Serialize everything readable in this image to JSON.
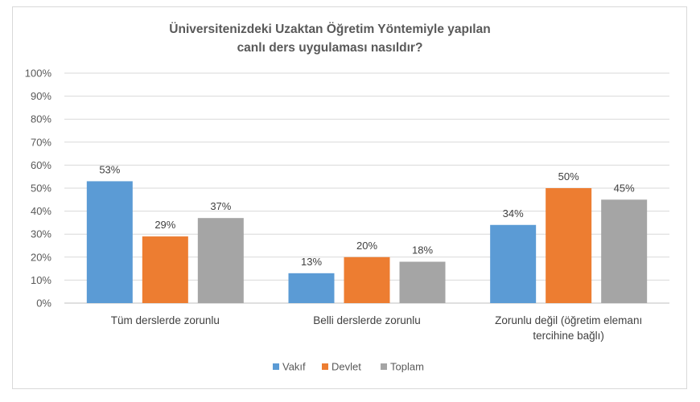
{
  "chart_data": {
    "type": "bar",
    "title_lines": [
      "Üniversitenizdeki Uzaktan Öğretim Yöntemiyle yapılan",
      "canlı ders uygulaması nasıldır?"
    ],
    "categories": [
      [
        "Tüm derslerde zorunlu"
      ],
      [
        "Belli derslerde zorunlu"
      ],
      [
        "Zorunlu değil (öğretim elemanı",
        "tercihine bağlı)"
      ]
    ],
    "series": [
      {
        "name": "Vakıf",
        "values": [
          53,
          13,
          34
        ],
        "labels": [
          "53%",
          "13%",
          "34%"
        ],
        "color": "#5B9BD5"
      },
      {
        "name": "Devlet",
        "values": [
          29,
          20,
          50
        ],
        "labels": [
          "29%",
          "20%",
          "50%"
        ],
        "color": "#ED7D31"
      },
      {
        "name": "Toplam",
        "values": [
          37,
          18,
          45
        ],
        "labels": [
          "37%",
          "18%",
          "45%"
        ],
        "color": "#A5A5A5"
      }
    ],
    "ylim": [
      0,
      100
    ],
    "yticks": [
      "0%",
      "10%",
      "20%",
      "30%",
      "40%",
      "50%",
      "60%",
      "70%",
      "80%",
      "90%",
      "100%"
    ],
    "grid": true,
    "legend_position": "bottom"
  }
}
